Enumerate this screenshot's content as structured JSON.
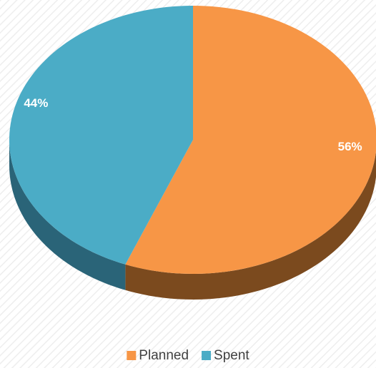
{
  "chart_data": {
    "type": "pie",
    "categories": [
      "Planned",
      "Spent"
    ],
    "values": [
      56,
      44
    ],
    "value_labels": [
      "56%",
      "44%"
    ],
    "colors": [
      "#f79646",
      "#4bacc6"
    ],
    "side_colors": [
      "#7b4a1e",
      "#2a6478"
    ],
    "legend": "bottom"
  }
}
